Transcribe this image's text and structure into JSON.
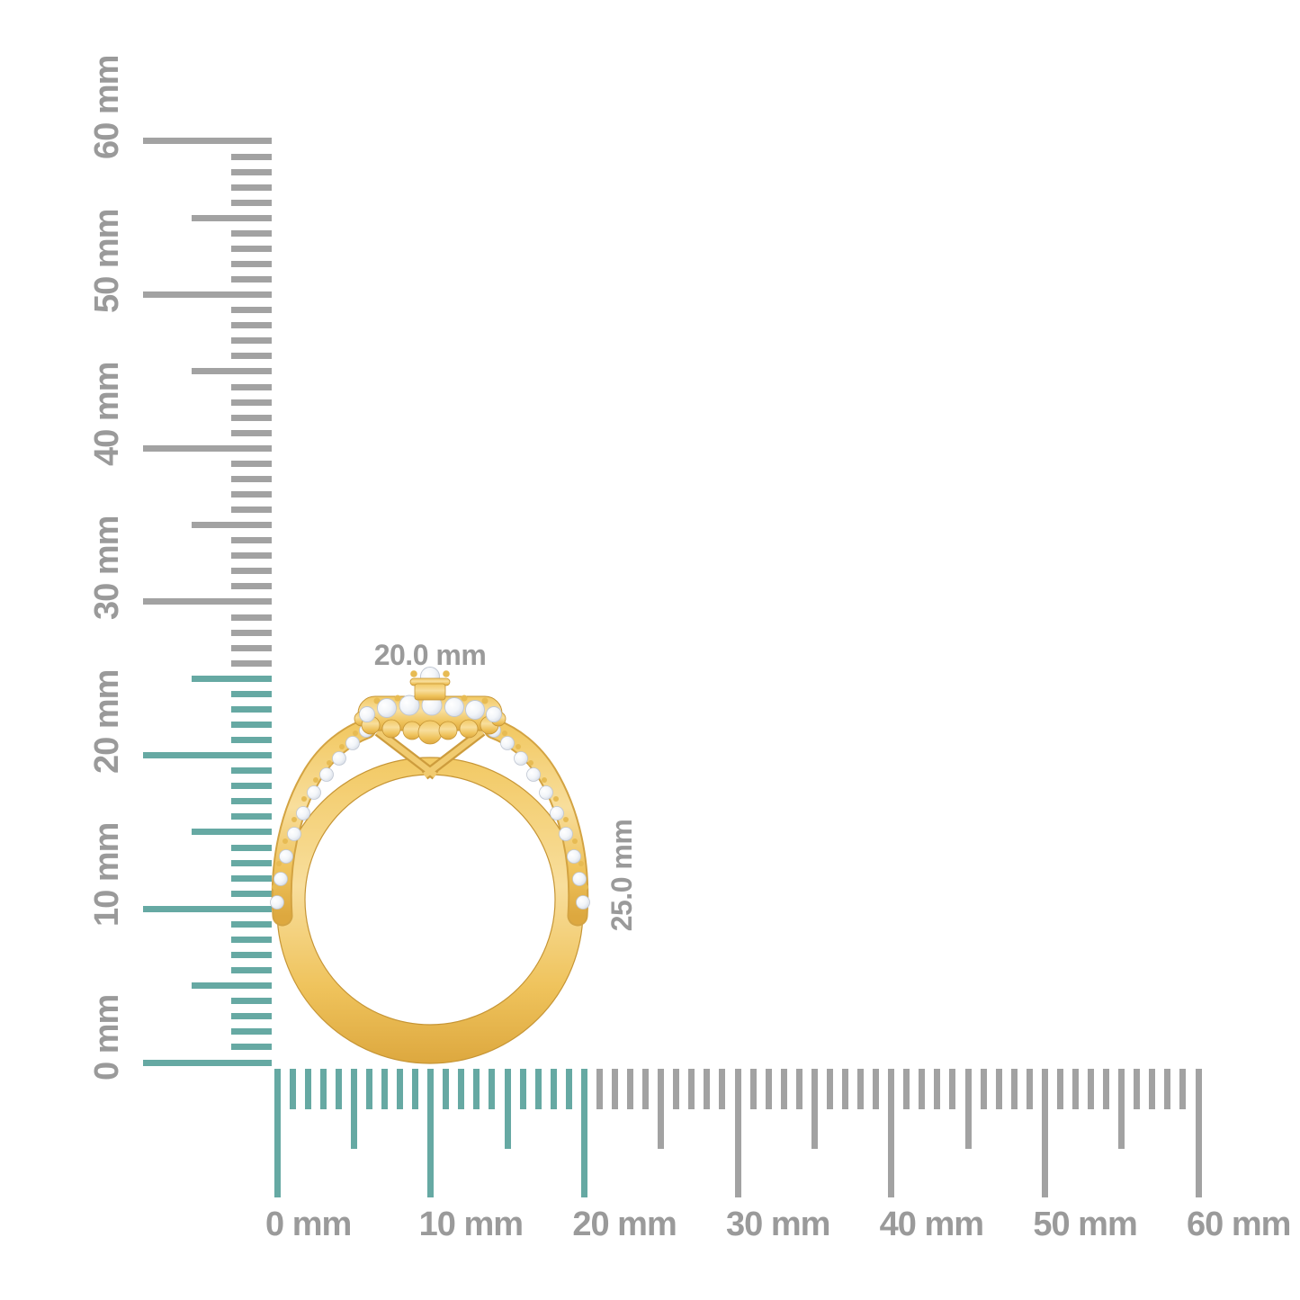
{
  "colors": {
    "background": "#FFFFFF",
    "highlight_teal": "#66A9A3",
    "tick_gray": "#A2A2A2",
    "label_gray": "#9A9A9A",
    "gold_light": "#F8DE9C",
    "gold_mid": "#EFC35C",
    "gold_dark": "#D3A342",
    "gold_outline": "#C69535",
    "diamond_white": "#FFFFFF",
    "diamond_shadow": "#D6DCE6"
  },
  "rulers": {
    "unit": "mm",
    "vertical": {
      "min_mm": 0,
      "max_mm": 60,
      "major_step_mm": 10,
      "medium_step_mm": 5,
      "minor_step_mm": 1,
      "highlighted_range_mm": [
        0,
        25
      ],
      "major_labels": [
        "0 mm",
        "10 mm",
        "20 mm",
        "30 mm",
        "40 mm",
        "50 mm",
        "60 mm"
      ]
    },
    "horizontal": {
      "min_mm": 0,
      "max_mm": 60,
      "major_step_mm": 10,
      "medium_step_mm": 5,
      "minor_step_mm": 1,
      "highlighted_range_mm": [
        0,
        20
      ],
      "major_labels": [
        "0 mm",
        "10 mm",
        "20 mm",
        "30 mm",
        "40 mm",
        "50 mm",
        "60 mm"
      ]
    }
  },
  "measurements": {
    "ring_width_label": "20.0 mm",
    "ring_height_label": "25.0 mm"
  }
}
